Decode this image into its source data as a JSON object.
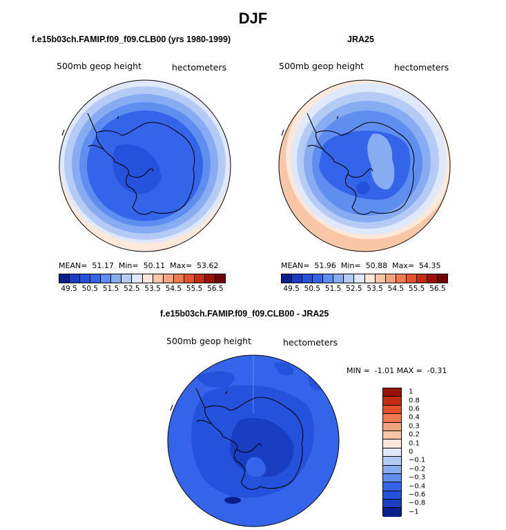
{
  "figure": {
    "title": "DJF"
  },
  "panel_model": {
    "title": "f.e15b03ch.FAMIP.f09_f09.CLB00 (yrs 1980-1999)",
    "left_label": "500mb geop height",
    "right_label": "hectometers",
    "stats_text": "MEAN=  51.17  Min=  50.11  Max=  53.62"
  },
  "panel_obs": {
    "title": "JRA25",
    "left_label": "500mb geop height",
    "right_label": "hectometers",
    "stats_text": "MEAN=  51.96  Min=  50.88  Max=  54.35"
  },
  "panel_diff": {
    "title": "f.e15b03ch.FAMIP.f09_f09.CLB00 - JRA25",
    "left_label": "500mb geop height",
    "right_label": "hectometers",
    "minmax_text": "MIN =  -1.01 MAX =  -0.31"
  },
  "colorbar_abs": {
    "colors": [
      "#0a1f8c",
      "#1a3ec2",
      "#2452dc",
      "#3464ea",
      "#5d8ef0",
      "#87acf2",
      "#b4cbf6",
      "#dfe9fb",
      "#fde8da",
      "#f9c7a8",
      "#f5a37e",
      "#f07a4e",
      "#e4522a",
      "#c42d12",
      "#9a1206",
      "#710000"
    ],
    "tick_labels": [
      "49.5",
      "50.5",
      "51.5",
      "52.5",
      "53.5",
      "54.5",
      "55.5",
      "56.5"
    ]
  },
  "colorbar_diff": {
    "colors": [
      "#0a1f8c",
      "#1a3ec2",
      "#2452dc",
      "#3464ea",
      "#5d8ef0",
      "#87acf2",
      "#b4cbf6",
      "#dfe9fb",
      "#fde8da",
      "#f9c7a8",
      "#f5a37e",
      "#f07a4e",
      "#e4522a",
      "#c42d12",
      "#9a1206"
    ],
    "labels": [
      "1",
      "0.8",
      "0.6",
      "0.4",
      "0.3",
      "0.2",
      "0.1",
      "0",
      "−0.1",
      "−0.2",
      "−0.3",
      "−0.4",
      "−0.6",
      "−0.8",
      "−1"
    ]
  }
}
